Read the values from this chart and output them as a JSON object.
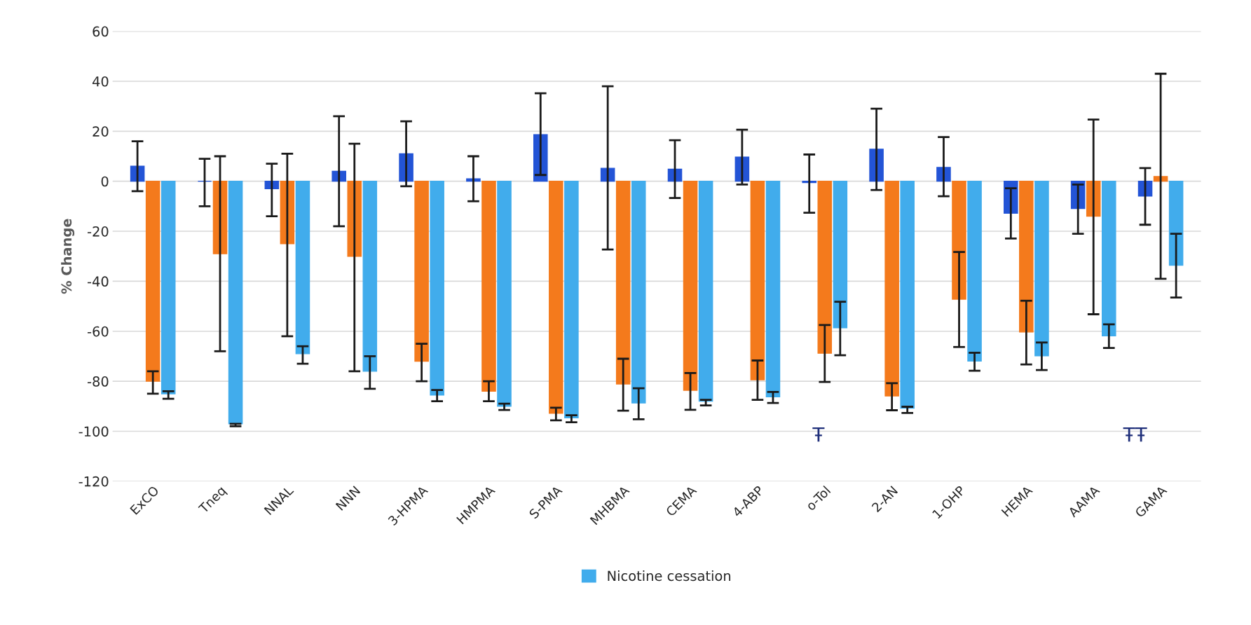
{
  "chart_data": {
    "type": "bar",
    "ylabel": "% Change",
    "categories": [
      "ExCO",
      "Tneq",
      "NNAL",
      "NNN",
      "3-HPMA",
      "HMPMA",
      "S-PMA",
      "MHBMA",
      "CEMA",
      "4-ABP",
      "o-Tol",
      "2-AN",
      "1-OHP",
      "HEMA",
      "AAMA",
      "GAMA"
    ],
    "series": [
      {
        "color": "#2354d6",
        "values": [
          6,
          0,
          -3,
          4,
          11,
          1,
          18.6,
          5.2,
          4.8,
          9.7,
          -0.5,
          12.8,
          5.5,
          -12.8,
          -10.9,
          -5.9
        ],
        "errors": [
          [
            -4,
            16
          ],
          [
            -10,
            9
          ],
          [
            -14,
            7
          ],
          [
            -18,
            26
          ],
          [
            -2,
            24
          ],
          [
            -8,
            10
          ],
          [
            2.5,
            35.2
          ],
          [
            -27.3,
            38
          ],
          [
            -6.7,
            16.4
          ],
          [
            -1.3,
            20.6
          ],
          [
            -12.6,
            10.7
          ],
          [
            -3.5,
            29
          ],
          [
            -6,
            17.7
          ],
          [
            -22.9,
            -2.8
          ],
          [
            -21,
            -1.3
          ],
          [
            -17.4,
            5.3
          ]
        ]
      },
      {
        "color": "#f47a1c",
        "values": [
          -80,
          -29,
          -25,
          -30,
          -72,
          -84,
          -92.8,
          -81.1,
          -83.6,
          -79.4,
          -68.8,
          -85.9,
          -47.2,
          -60.3,
          -14,
          1.9
        ],
        "errors": [
          [
            -85,
            -76
          ],
          [
            -68,
            10
          ],
          [
            -62,
            11
          ],
          [
            -76,
            15
          ],
          [
            -80,
            -65
          ],
          [
            -88,
            -80
          ],
          [
            -95.6,
            -90.6
          ],
          [
            -91.8,
            -71
          ],
          [
            -91.4,
            -76.7
          ],
          [
            -87.4,
            -71.7
          ],
          [
            -80.3,
            -57.5
          ],
          [
            -91.6,
            -80.8
          ],
          [
            -66.3,
            -28.3
          ],
          [
            -73.3,
            -47.8
          ],
          [
            -53.2,
            24.7
          ],
          [
            -39,
            43
          ]
        ]
      },
      {
        "name": "Nicotine cessation",
        "color": "#41acec",
        "values": [
          -85,
          -97,
          -69,
          -76,
          -85.5,
          -90,
          -94.6,
          -88.7,
          -88,
          -86.2,
          -58.6,
          -90.8,
          -71.9,
          -69.8,
          -61.8,
          -33.6
        ],
        "errors": [
          [
            -87,
            -84
          ],
          [
            -98,
            -97
          ],
          [
            -73,
            -66
          ],
          [
            -83,
            -70
          ],
          [
            -88,
            -83.5
          ],
          [
            -91.5,
            -89
          ],
          [
            -96.4,
            -93.6
          ],
          [
            -95.2,
            -82.8
          ],
          [
            -89.7,
            -87.4
          ],
          [
            -88.7,
            -84.3
          ],
          [
            -69.6,
            -48.2
          ],
          [
            -92.7,
            -90.2
          ],
          [
            -75.8,
            -68.6
          ],
          [
            -75.5,
            -64.5
          ],
          [
            -66.7,
            -57.2
          ],
          [
            -46.5,
            -21
          ]
        ]
      }
    ],
    "ylim": [
      -120,
      60
    ],
    "yticks": [
      -120,
      -100,
      -80,
      -60,
      -40,
      -20,
      0,
      20,
      40,
      60
    ],
    "grid": "y",
    "legend": "bottom",
    "annotations": [
      "Ŧ",
      "ŦŦ"
    ]
  }
}
